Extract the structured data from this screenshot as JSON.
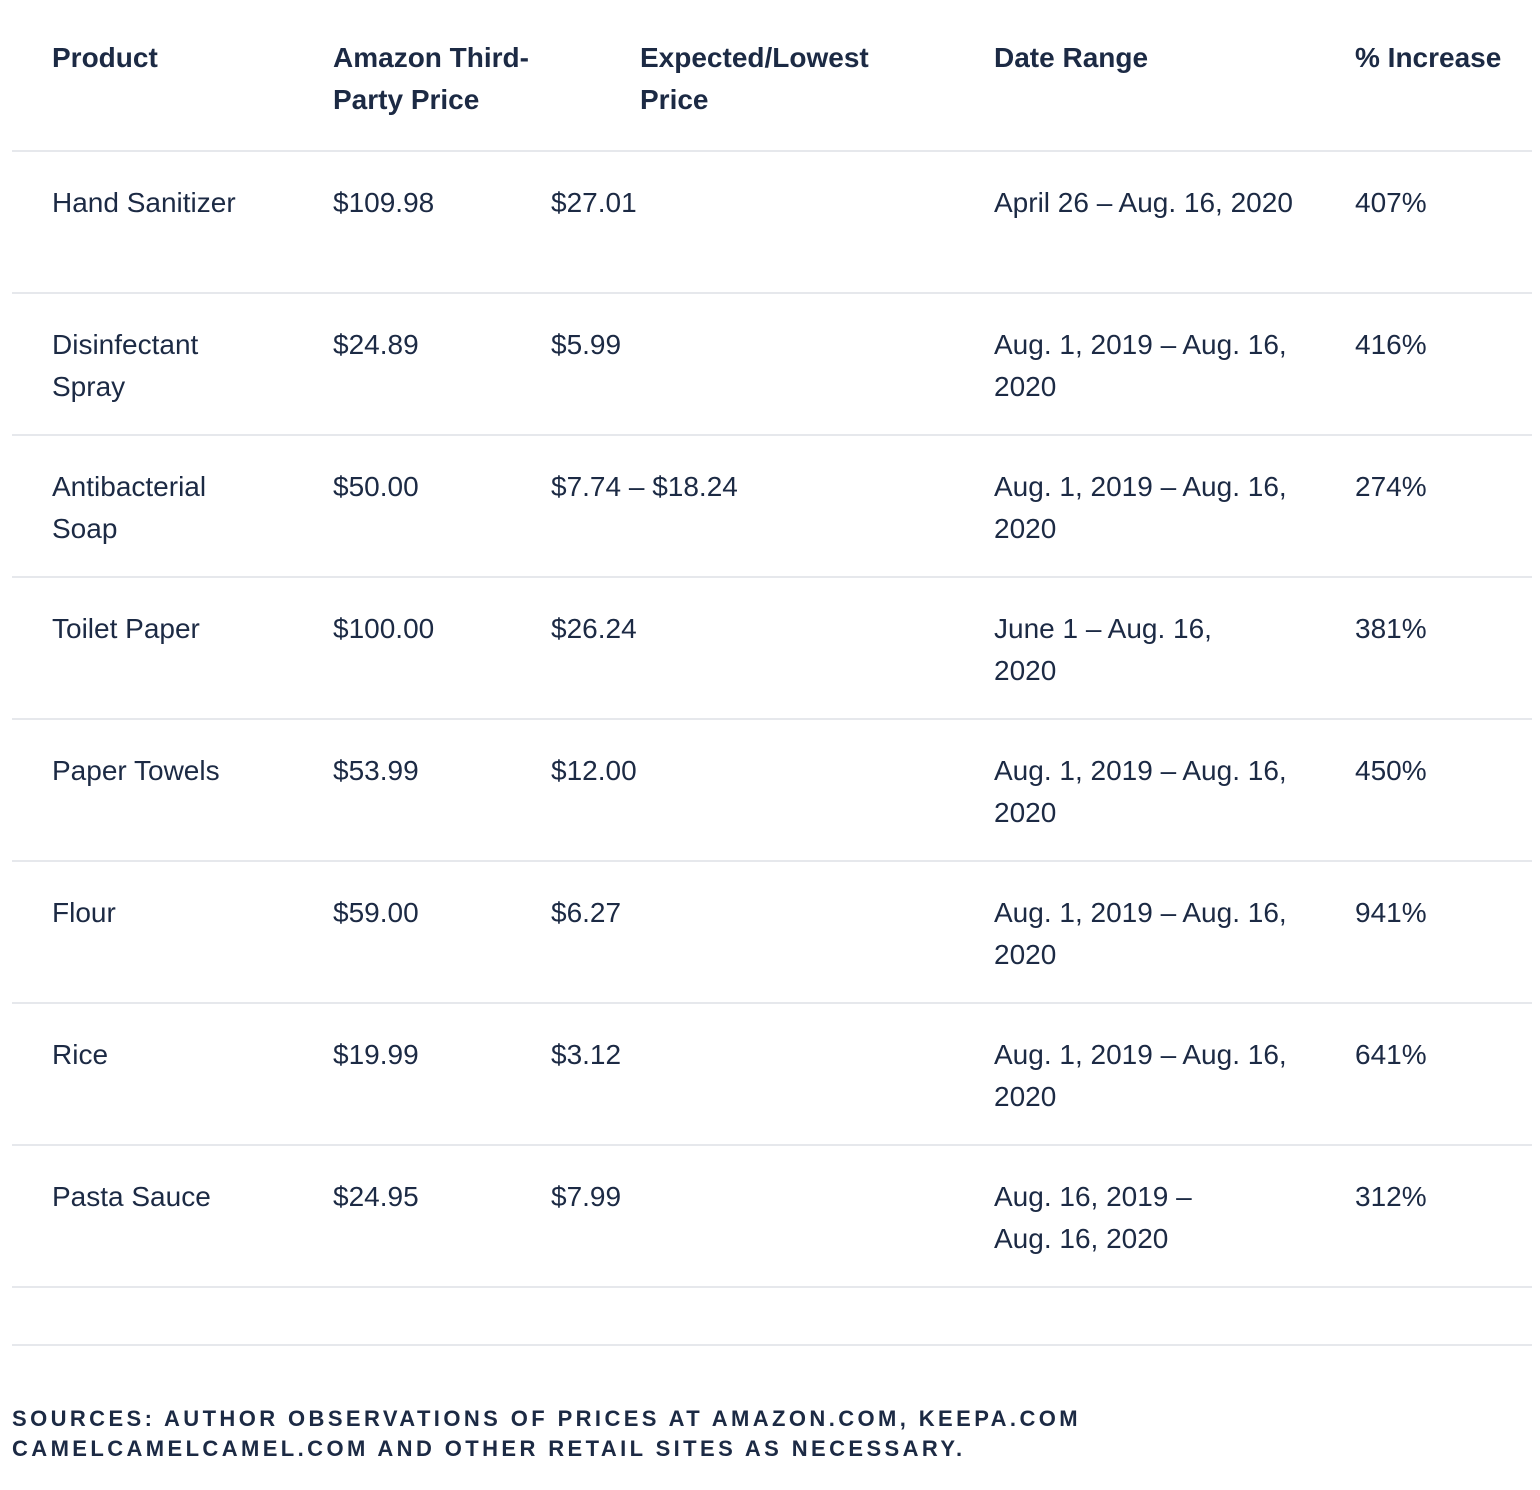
{
  "table": {
    "headers": {
      "product": "Product",
      "amazon_price": "Amazon Third-Party Price",
      "expected_price": "Expected/Lowest Price",
      "date_range": "Date Range",
      "pct_increase": "% Increase"
    },
    "rows": [
      {
        "product": "Hand Sanitizer",
        "amazon_price": "$109.98",
        "expected_price": "$27.01",
        "date_range": "April 26 – Aug. 16, 2020",
        "pct_increase": "407%"
      },
      {
        "product": "Disinfectant Spray",
        "amazon_price": "$24.89",
        "expected_price": "$5.99",
        "date_range": "Aug. 1, 2019 – Aug. 16, 2020",
        "pct_increase": "416%"
      },
      {
        "product": "Antibacterial Soap",
        "amazon_price": "$50.00",
        "expected_price": "$7.74 – $18.24",
        "date_range": "Aug. 1, 2019 – Aug. 16, 2020",
        "pct_increase": "274%"
      },
      {
        "product": "Toilet Paper",
        "amazon_price": "$100.00",
        "expected_price": "$26.24",
        "date_range": "June 1 – Aug. 16, 2020",
        "pct_increase": "381%"
      },
      {
        "product": "Paper Towels",
        "amazon_price": "$53.99",
        "expected_price": "$12.00",
        "date_range": "Aug. 1, 2019 – Aug. 16, 2020",
        "pct_increase": "450%"
      },
      {
        "product": "Flour",
        "amazon_price": "$59.00",
        "expected_price": "$6.27",
        "date_range": "Aug. 1, 2019 – Aug. 16, 2020",
        "pct_increase": "941%"
      },
      {
        "product": "Rice",
        "amazon_price": "$19.99",
        "expected_price": "$3.12",
        "date_range": "Aug. 1, 2019 – Aug. 16, 2020",
        "pct_increase": "641%"
      },
      {
        "product": "Pasta Sauce",
        "amazon_price": "$24.95",
        "expected_price": "$7.99",
        "date_range": "Aug. 16, 2019 – Aug. 16, 2020",
        "pct_increase": "312%"
      }
    ]
  },
  "sources": {
    "line1": "SOURCES: AUTHOR OBSERVATIONS OF PRICES AT AMAZON.COM, KEEPA.COM",
    "line2": "CAMELCAMELCAMEL.COM AND OTHER RETAIL SITES AS NECESSARY."
  }
}
